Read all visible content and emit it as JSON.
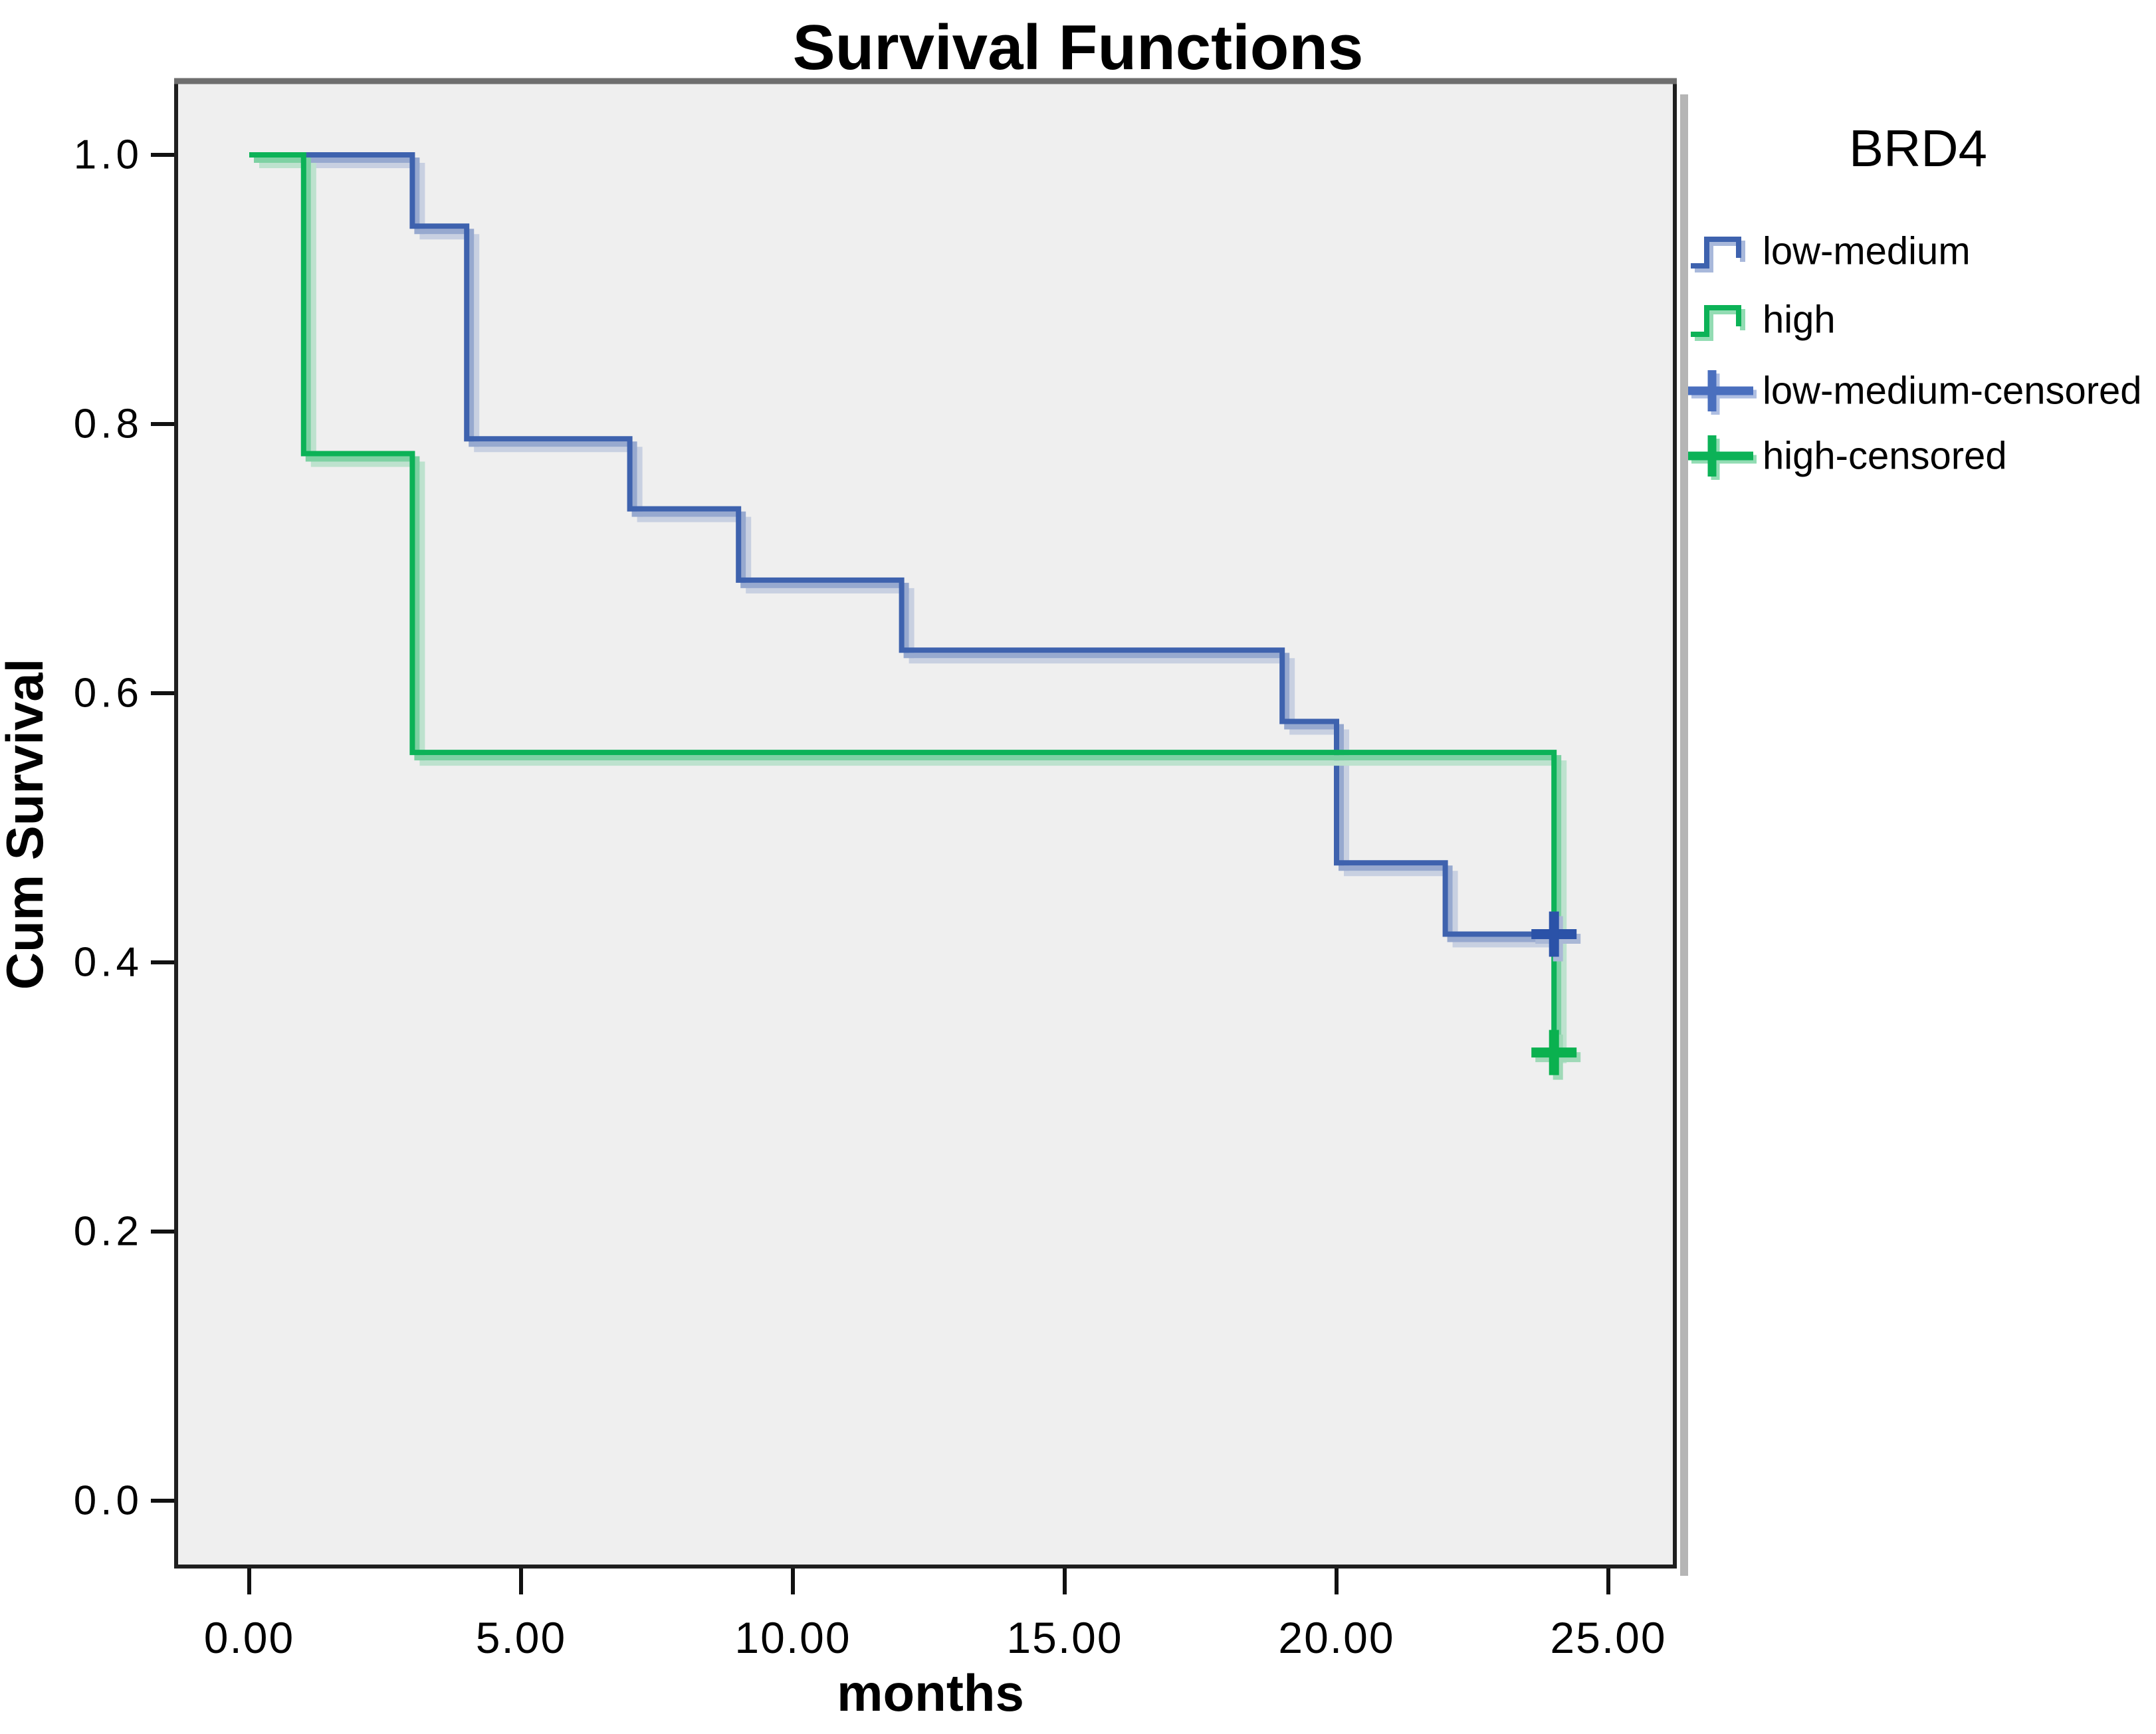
{
  "title": "Survival Functions",
  "axes": {
    "x": {
      "label": "months",
      "ticks": [
        {
          "value": 0,
          "label": "0.00"
        },
        {
          "value": 5,
          "label": "5.00"
        },
        {
          "value": 10,
          "label": "10.00"
        },
        {
          "value": 15,
          "label": "15.00"
        },
        {
          "value": 20,
          "label": "20.00"
        },
        {
          "value": 25,
          "label": "25.00"
        }
      ]
    },
    "y": {
      "label": "Cum Survival",
      "ticks": [
        {
          "value": 1.0,
          "label": "1.0"
        },
        {
          "value": 0.8,
          "label": "0.8"
        },
        {
          "value": 0.6,
          "label": "0.6"
        },
        {
          "value": 0.4,
          "label": "0.4"
        },
        {
          "value": 0.2,
          "label": "0.2"
        },
        {
          "value": 0.0,
          "label": "0.0"
        }
      ]
    }
  },
  "legend": {
    "title": "BRD4",
    "items": [
      {
        "label": "low-medium",
        "glyph": "step",
        "color": "#3E62AE"
      },
      {
        "label": "high",
        "glyph": "step",
        "color": "#0CB257"
      },
      {
        "label": "low-medium-censored",
        "glyph": "plus",
        "color": "#4A6FBE"
      },
      {
        "label": "high-censored",
        "glyph": "plus",
        "color": "#0CB257"
      }
    ]
  },
  "colors": {
    "low_medium_line": "#3E62AE",
    "high_line": "#0CB257",
    "low_medium_censor_marker": "#2B52A8",
    "high_censor_marker": "#0AB14F",
    "plot_background": "#EFEFEF",
    "frame": "#1F1F1F",
    "frame_top": "#6E6E6E",
    "frame_outer_shadow": "#B5B5B5",
    "text": "#000000"
  },
  "chart_data": {
    "type": "line",
    "subtype": "kaplan-meier-step",
    "title": "Survival Functions",
    "xlabel": "months",
    "ylabel": "Cum Survival",
    "xlim": [
      -1.35,
      26.25
    ],
    "ylim": [
      -0.05,
      1.055
    ],
    "x_tick_values": [
      0,
      5,
      10,
      15,
      20,
      25
    ],
    "y_tick_values": [
      0.0,
      0.2,
      0.4,
      0.6,
      0.8,
      1.0
    ],
    "grid": false,
    "legend_position": "right",
    "legend_title": "BRD4",
    "series": [
      {
        "name": "low-medium",
        "color": "#3E62AE",
        "steps": [
          [
            0,
            1.0
          ],
          [
            3,
            1.0
          ],
          [
            3,
            0.947
          ],
          [
            4,
            0.947
          ],
          [
            4,
            0.789
          ],
          [
            7,
            0.789
          ],
          [
            7,
            0.737
          ],
          [
            9,
            0.737
          ],
          [
            9,
            0.684
          ],
          [
            12,
            0.684
          ],
          [
            12,
            0.632
          ],
          [
            19,
            0.632
          ],
          [
            19,
            0.579
          ],
          [
            20,
            0.579
          ],
          [
            20,
            0.474
          ],
          [
            22,
            0.474
          ],
          [
            22,
            0.421
          ],
          [
            24,
            0.421
          ]
        ],
        "censored_points": [
          [
            24,
            0.421
          ]
        ]
      },
      {
        "name": "high",
        "color": "#0CB257",
        "steps": [
          [
            0,
            1.0
          ],
          [
            1,
            1.0
          ],
          [
            1,
            0.778
          ],
          [
            3,
            0.778
          ],
          [
            3,
            0.556
          ],
          [
            24,
            0.556
          ],
          [
            24,
            0.333
          ]
        ],
        "censored_points": [
          [
            24,
            0.333
          ]
        ]
      }
    ]
  }
}
